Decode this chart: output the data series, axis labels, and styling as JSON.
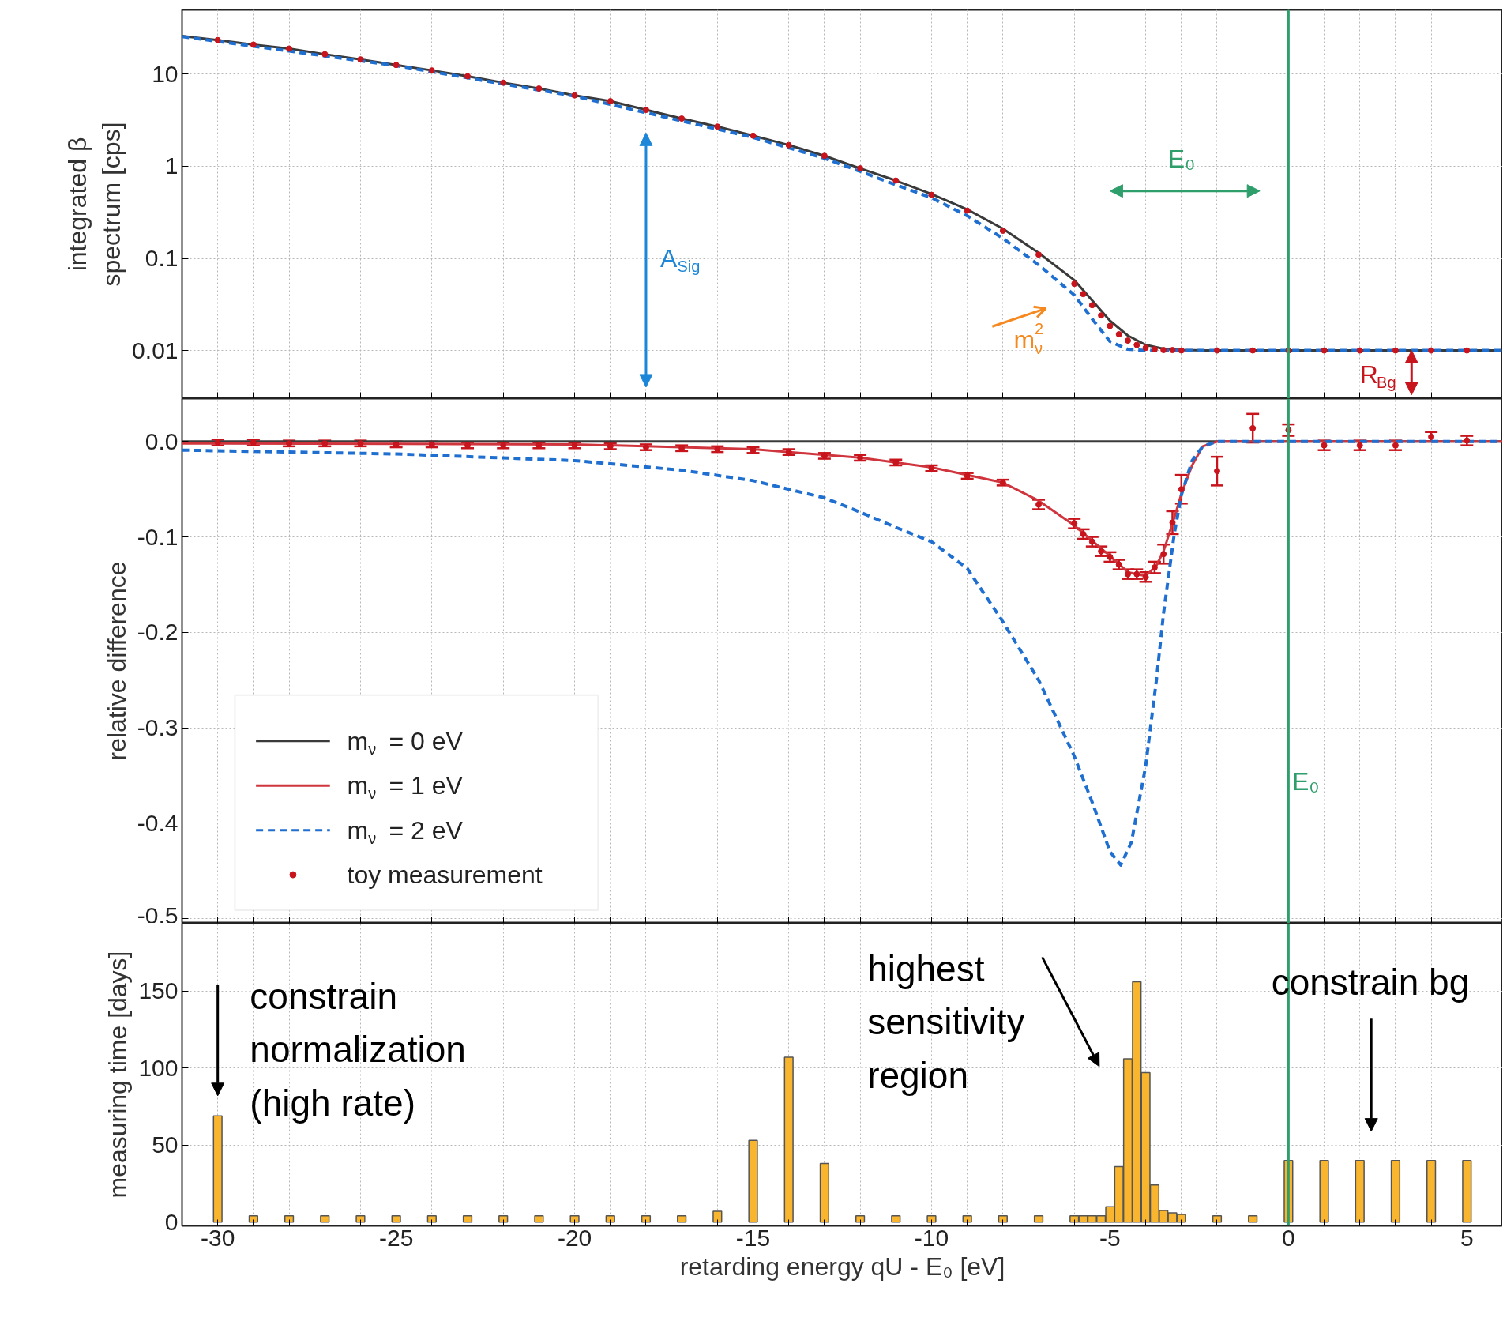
{
  "chart_data": [
    {
      "type": "line",
      "ylabel": "integrated β\nspectrum [cps]",
      "log": true,
      "xlim": [
        -31,
        6
      ],
      "ylim": [
        0.003,
        50
      ],
      "yticks": [
        0.01,
        0.1,
        1,
        10
      ],
      "grid": true,
      "tick_labels": "y",
      "legend": false,
      "xticks": [
        -30,
        {
          "value": -29,
          "label": null
        },
        {
          "value": -28,
          "label": null
        },
        {
          "value": -27,
          "label": null
        },
        {
          "value": -26,
          "label": null
        },
        -25,
        {
          "value": -24,
          "label": null
        },
        {
          "value": -23,
          "label": null
        },
        {
          "value": -22,
          "label": null
        },
        {
          "value": -21,
          "label": null
        },
        -20,
        {
          "value": -19,
          "label": null
        },
        {
          "value": -18,
          "label": null
        },
        {
          "value": -17,
          "label": null
        },
        {
          "value": -16,
          "label": null
        },
        -15,
        {
          "value": -14,
          "label": null
        },
        {
          "value": -13,
          "label": null
        },
        {
          "value": -12,
          "label": null
        },
        {
          "value": -11,
          "label": null
        },
        -10,
        {
          "value": -9,
          "label": null
        },
        {
          "value": -8,
          "label": null
        },
        {
          "value": -7,
          "label": null
        },
        {
          "value": -6,
          "label": null
        },
        -5,
        {
          "value": -4,
          "label": null
        },
        {
          "value": -3,
          "label": null
        },
        {
          "value": -2,
          "label": null
        },
        {
          "value": -1,
          "label": null
        },
        0,
        {
          "value": 1,
          "label": null
        },
        {
          "value": 2,
          "label": null
        },
        {
          "value": 3,
          "label": null
        },
        {
          "value": 4,
          "label": null
        },
        5
      ],
      "ref_lines": [
        {
          "axis": "x",
          "value": 0,
          "color": "#2e9e6b"
        }
      ],
      "annotations": [
        "A$_{Sig}$",
        "E₀",
        "m$_{ν}$$^{2}$",
        "R$_{Bg}$"
      ],
      "series": [
        {
          "color": "#3a3a3a",
          "line_style": "solid",
          "x": [
            -31,
            -30,
            -29,
            -28,
            -27,
            -26,
            -25,
            -24,
            -23,
            -22,
            -21,
            -20,
            -19,
            -18,
            -17,
            -16,
            -15,
            -14,
            -13,
            -12,
            -11,
            -10,
            -9,
            -8,
            -7,
            -6,
            -5.5,
            -5,
            -4.5,
            -4,
            -3.5,
            -3,
            -2,
            6
          ],
          "values": [
            26,
            23.5,
            21,
            19,
            16.5,
            14.5,
            12.6,
            11,
            9.5,
            8.1,
            7,
            5.9,
            5.1,
            4.1,
            3.3,
            2.7,
            2.15,
            1.7,
            1.3,
            0.95,
            0.7,
            0.5,
            0.34,
            0.21,
            0.115,
            0.058,
            0.035,
            0.021,
            0.0145,
            0.0115,
            0.0104,
            0.0101,
            0.01,
            0.01
          ]
        },
        {
          "color": "#1f6fd0",
          "line_style": "dashed",
          "x": [
            -31,
            -25,
            -20,
            -15,
            -13,
            -12,
            -11,
            -10,
            -9,
            -8,
            -7,
            -6,
            -5.5,
            -5,
            -4.5,
            -4,
            6
          ],
          "values": [
            25.7,
            12.4,
            5.78,
            2.06,
            1.22,
            0.88,
            0.63,
            0.455,
            0.29,
            0.165,
            0.085,
            0.04,
            0.022,
            0.0125,
            0.0103,
            0.01,
            0.01
          ]
        },
        {
          "type": "scatter",
          "color": "#c8141c",
          "marker": "circle",
          "x": [
            -30,
            -29,
            -28,
            -27,
            -26,
            -25,
            -24,
            -23,
            -22,
            -21,
            -20,
            -19,
            -18,
            -17,
            -16,
            -15,
            -14,
            -13,
            -12,
            -11,
            -10,
            -9,
            -8,
            -7,
            -6,
            -5.75,
            -5.5,
            -5.25,
            -5,
            -4.75,
            -4.5,
            -4.25,
            -4,
            -3.75,
            -3.5,
            -3.25,
            -3,
            -2,
            -1,
            0,
            1,
            2,
            3,
            4,
            5
          ],
          "values": [
            23.5,
            21,
            19,
            16.5,
            14.5,
            12.6,
            11,
            9.5,
            8.1,
            7,
            5.9,
            5.1,
            4.1,
            3.3,
            2.7,
            2.15,
            1.7,
            1.3,
            0.95,
            0.7,
            0.49,
            0.33,
            0.2,
            0.11,
            0.053,
            0.041,
            0.031,
            0.024,
            0.0185,
            0.015,
            0.0128,
            0.0115,
            0.0107,
            0.0103,
            0.0101,
            0.0101,
            0.01,
            0.01,
            0.01,
            0.01,
            0.01,
            0.01,
            0.01,
            0.01,
            0.01
          ]
        }
      ]
    },
    {
      "type": "line",
      "ylabel": "relative difference",
      "xlim": [
        -31,
        6
      ],
      "ylim": [
        -0.505,
        0.045
      ],
      "yticks": [
        {
          "value": 0,
          "label": "0.0"
        },
        -0.1,
        -0.2,
        -0.3,
        -0.4,
        -0.5
      ],
      "grid": true,
      "tick_labels": "y",
      "legend": "bottom left",
      "xticks": [
        -30,
        {
          "value": -29,
          "label": null
        },
        {
          "value": -28,
          "label": null
        },
        {
          "value": -27,
          "label": null
        },
        {
          "value": -26,
          "label": null
        },
        -25,
        {
          "value": -24,
          "label": null
        },
        {
          "value": -23,
          "label": null
        },
        {
          "value": -22,
          "label": null
        },
        {
          "value": -21,
          "label": null
        },
        -20,
        {
          "value": -19,
          "label": null
        },
        {
          "value": -18,
          "label": null
        },
        {
          "value": -17,
          "label": null
        },
        {
          "value": -16,
          "label": null
        },
        -15,
        {
          "value": -14,
          "label": null
        },
        {
          "value": -13,
          "label": null
        },
        {
          "value": -12,
          "label": null
        },
        {
          "value": -11,
          "label": null
        },
        -10,
        {
          "value": -9,
          "label": null
        },
        {
          "value": -8,
          "label": null
        },
        {
          "value": -7,
          "label": null
        },
        {
          "value": -6,
          "label": null
        },
        -5,
        {
          "value": -4,
          "label": null
        },
        {
          "value": -3,
          "label": null
        },
        {
          "value": -2,
          "label": null
        },
        {
          "value": -1,
          "label": null
        },
        0,
        {
          "value": 1,
          "label": null
        },
        {
          "value": 2,
          "label": null
        },
        {
          "value": 3,
          "label": null
        },
        {
          "value": 4,
          "label": null
        },
        5
      ],
      "ref_lines": [
        {
          "axis": "x",
          "value": 0,
          "color": "#2e9e6b",
          "label": "E₀"
        }
      ],
      "series": [
        {
          "name": "m$_{ν}$ = 0 eV",
          "color": "#3a3a3a",
          "line_style": "solid",
          "x": [
            -31,
            6
          ],
          "values": [
            0,
            0
          ]
        },
        {
          "name": "m$_{ν}$ = 1 eV",
          "color": "#d0343c",
          "line_style": "solid",
          "x": [
            -31,
            -30,
            -20,
            -15,
            -12,
            -10,
            -8,
            -7,
            -6,
            -5,
            -4.5,
            -4,
            -3.7,
            -3.5,
            -3.2,
            -3,
            -2.7,
            -2.4,
            -2,
            6
          ],
          "values": [
            -0.002,
            -0.002,
            -0.003,
            -0.008,
            -0.017,
            -0.027,
            -0.043,
            -0.062,
            -0.088,
            -0.12,
            -0.137,
            -0.141,
            -0.13,
            -0.115,
            -0.08,
            -0.055,
            -0.025,
            -0.005,
            0,
            0
          ]
        },
        {
          "name": "m$_{ν}$ = 2 eV",
          "color": "#1f6fd0",
          "line_style": "dashed",
          "x": [
            -31,
            -25,
            -20,
            -17,
            -15,
            -13,
            -12,
            -11,
            -10,
            -9,
            -8,
            -7,
            -6,
            -5.5,
            -5,
            -4.7,
            -4.4,
            -4,
            -3.7,
            -3.5,
            -3.2,
            -3,
            -2.7,
            -2.4,
            -2,
            6
          ],
          "values": [
            -0.009,
            -0.013,
            -0.02,
            -0.03,
            -0.041,
            -0.059,
            -0.074,
            -0.09,
            -0.105,
            -0.133,
            -0.189,
            -0.25,
            -0.33,
            -0.378,
            -0.43,
            -0.444,
            -0.42,
            -0.34,
            -0.25,
            -0.18,
            -0.097,
            -0.056,
            -0.02,
            -0.005,
            0,
            0
          ]
        },
        {
          "name": "toy measurement",
          "type": "scatter",
          "color": "#c8141c",
          "marker": "circle",
          "x": [
            -30,
            -29,
            -28,
            -27,
            -26,
            -25,
            -24,
            -23,
            -22,
            -21,
            -20,
            -19,
            -18,
            -17,
            -16,
            -15,
            -14,
            -13,
            -12,
            -11,
            -10,
            -9,
            -8,
            -7,
            -6,
            -5.75,
            -5.5,
            -5.25,
            -5,
            -4.75,
            -4.5,
            -4.25,
            -4,
            -3.75,
            -3.5,
            -3.25,
            -3,
            -2,
            -1,
            0,
            1,
            2,
            3,
            4,
            5
          ],
          "values": [
            -0.001,
            -0.001,
            -0.002,
            -0.002,
            -0.002,
            -0.003,
            -0.003,
            -0.004,
            -0.004,
            -0.004,
            -0.004,
            -0.005,
            -0.006,
            -0.007,
            -0.008,
            -0.009,
            -0.011,
            -0.015,
            -0.017,
            -0.022,
            -0.028,
            -0.036,
            -0.043,
            -0.066,
            -0.086,
            -0.097,
            -0.105,
            -0.115,
            -0.121,
            -0.129,
            -0.139,
            -0.139,
            -0.142,
            -0.132,
            -0.118,
            -0.085,
            -0.05,
            -0.031,
            0.014,
            0.012,
            -0.004,
            -0.004,
            -0.004,
            0.005,
            0.001
          ],
          "errors": [
            0.003,
            0.003,
            0.003,
            0.003,
            0.003,
            0.003,
            0.003,
            0.003,
            0.003,
            0.003,
            0.003,
            0.003,
            0.003,
            0.003,
            0.003,
            0.003,
            0.003,
            0.003,
            0.003,
            0.003,
            0.003,
            0.003,
            0.003,
            0.005,
            0.005,
            0.005,
            0.005,
            0.005,
            0.005,
            0.005,
            0.005,
            0.005,
            0.005,
            0.006,
            0.01,
            0.012,
            0.015,
            0.015,
            0.015,
            0.006,
            0.005,
            0.005,
            0.005,
            0.005,
            0.005
          ]
        }
      ]
    },
    {
      "type": "bar",
      "ylabel": "measuring time [days]",
      "xlabel": "retarding energy qU - E₀ [eV]",
      "xlim": [
        -31,
        6
      ],
      "ylim": [
        -2.5,
        194
      ],
      "yticks": [
        0,
        50,
        100,
        150
      ],
      "grid": true,
      "legend": false,
      "xticks": [
        -30,
        {
          "value": -29,
          "label": null
        },
        {
          "value": -28,
          "label": null
        },
        {
          "value": -27,
          "label": null
        },
        {
          "value": -26,
          "label": null
        },
        -25,
        {
          "value": -24,
          "label": null
        },
        {
          "value": -23,
          "label": null
        },
        {
          "value": -22,
          "label": null
        },
        {
          "value": -21,
          "label": null
        },
        -20,
        {
          "value": -19,
          "label": null
        },
        {
          "value": -18,
          "label": null
        },
        {
          "value": -17,
          "label": null
        },
        {
          "value": -16,
          "label": null
        },
        -15,
        {
          "value": -14,
          "label": null
        },
        {
          "value": -13,
          "label": null
        },
        {
          "value": -12,
          "label": null
        },
        {
          "value": -11,
          "label": null
        },
        -10,
        {
          "value": -9,
          "label": null
        },
        {
          "value": -8,
          "label": null
        },
        {
          "value": -7,
          "label": null
        },
        {
          "value": -6,
          "label": null
        },
        -5,
        {
          "value": -4,
          "label": null
        },
        {
          "value": -3,
          "label": null
        },
        {
          "value": -2,
          "label": null
        },
        {
          "value": -1,
          "label": null
        },
        0,
        {
          "value": 1,
          "label": null
        },
        {
          "value": 2,
          "label": null
        },
        {
          "value": 3,
          "label": null
        },
        {
          "value": 4,
          "label": null
        },
        5
      ],
      "ref_lines": [
        {
          "axis": "x",
          "value": 0,
          "color": "#2e9e6b"
        }
      ],
      "annotations": [
        "constrain\nnormalization\n(high rate)",
        "highest\nsensitivity\nregion",
        "constrain bg"
      ],
      "series": [
        {
          "color": "#f9b52d",
          "x": [
            -30,
            -29,
            -28,
            -27,
            -26,
            -25,
            -24,
            -23,
            -22,
            -21,
            -20,
            -19,
            -18,
            -17,
            -16,
            -15,
            -14,
            -13,
            -12,
            -11,
            -10,
            -9,
            -8,
            -7,
            -6,
            -5.75,
            -5.5,
            -5.25,
            -5,
            -4.75,
            -4.5,
            -4.25,
            -4,
            -3.75,
            -3.5,
            -3.25,
            -3,
            -2,
            -1,
            0,
            1,
            2,
            3,
            4,
            5
          ],
          "values": [
            69,
            4,
            4,
            4,
            4,
            4,
            4,
            4,
            4,
            4,
            4,
            4,
            4,
            4,
            7,
            53,
            107,
            38,
            4,
            4,
            4,
            4,
            4,
            4,
            4,
            4,
            4,
            4,
            10,
            36,
            106,
            156,
            97,
            24,
            7.5,
            6,
            5,
            4,
            4,
            40,
            40,
            40,
            40,
            40,
            40
          ]
        }
      ]
    }
  ]
}
